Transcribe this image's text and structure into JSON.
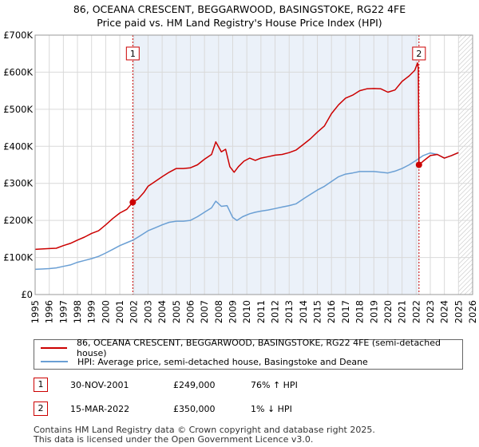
{
  "titles": {
    "line1": "86, OCEANA CRESCENT, BEGGARWOOD, BASINGSTOKE, RG22 4FE",
    "line2": "Price paid vs. HM Land Registry's House Price Index (HPI)"
  },
  "colors": {
    "property": "#cc0000",
    "hpi": "#6a9fd4",
    "band": "#dde8f5",
    "grid": "#d9d9d9"
  },
  "chart_data": {
    "type": "line",
    "xlim": [
      1995,
      2026
    ],
    "ylim": [
      0,
      700000
    ],
    "y_ticks": [
      {
        "value": 0,
        "label": "£0"
      },
      {
        "value": 100000,
        "label": "£100K"
      },
      {
        "value": 200000,
        "label": "£200K"
      },
      {
        "value": 300000,
        "label": "£300K"
      },
      {
        "value": 400000,
        "label": "£400K"
      },
      {
        "value": 500000,
        "label": "£500K"
      },
      {
        "value": 600000,
        "label": "£600K"
      },
      {
        "value": 700000,
        "label": "£700K"
      }
    ],
    "x_ticks": [
      "1995",
      "1996",
      "1997",
      "1998",
      "1999",
      "2000",
      "2001",
      "2002",
      "2003",
      "2004",
      "2005",
      "2006",
      "2007",
      "2008",
      "2009",
      "2010",
      "2011",
      "2012",
      "2013",
      "2014",
      "2015",
      "2016",
      "2017",
      "2018",
      "2019",
      "2020",
      "2021",
      "2022",
      "2023",
      "2024",
      "2025",
      "2026"
    ],
    "shaded_band": [
      2001.92,
      2022.2
    ],
    "projection_start": 2025.0,
    "series": [
      {
        "name": "86, OCEANA CRESCENT, BEGGARWOOD, BASINGSTOKE, RG22 4FE (semi-detached house)",
        "color": "#cc0000",
        "x": [
          1995.0,
          1995.5,
          1996.0,
          1996.5,
          1997.0,
          1997.5,
          1998.0,
          1998.5,
          1999.0,
          1999.5,
          2000.0,
          2000.5,
          2001.0,
          2001.5,
          2001.92,
          2002.3,
          2002.7,
          2003.0,
          2003.5,
          2004.0,
          2004.5,
          2005.0,
          2005.5,
          2006.0,
          2006.5,
          2007.0,
          2007.5,
          2007.8,
          2008.2,
          2008.5,
          2008.8,
          2009.1,
          2009.4,
          2009.8,
          2010.2,
          2010.6,
          2011.0,
          2011.5,
          2012.0,
          2012.5,
          2013.0,
          2013.5,
          2014.0,
          2014.5,
          2015.0,
          2015.5,
          2016.0,
          2016.5,
          2017.0,
          2017.5,
          2018.0,
          2018.5,
          2019.0,
          2019.5,
          2020.0,
          2020.5,
          2021.0,
          2021.5,
          2021.9,
          2022.1,
          2022.15,
          2022.2,
          2022.5,
          2023.0,
          2023.5,
          2024.0,
          2024.5,
          2025.0
        ],
        "y": [
          122000,
          123000,
          124000,
          125000,
          132000,
          138000,
          147000,
          155000,
          165000,
          172000,
          188000,
          205000,
          220000,
          230000,
          249000,
          258000,
          275000,
          292000,
          305000,
          318000,
          330000,
          340000,
          340000,
          342000,
          350000,
          365000,
          378000,
          412000,
          385000,
          392000,
          345000,
          330000,
          345000,
          360000,
          368000,
          362000,
          368000,
          372000,
          376000,
          378000,
          383000,
          390000,
          405000,
          420000,
          438000,
          455000,
          488000,
          512000,
          530000,
          538000,
          550000,
          555000,
          556000,
          555000,
          546000,
          552000,
          575000,
          590000,
          605000,
          625000,
          610000,
          350000,
          360000,
          375000,
          378000,
          368000,
          375000,
          383000
        ]
      },
      {
        "name": "HPI: Average price, semi-detached house, Basingstoke and Deane",
        "color": "#6a9fd4",
        "x": [
          1995.0,
          1995.5,
          1996.0,
          1996.5,
          1997.0,
          1997.5,
          1998.0,
          1998.5,
          1999.0,
          1999.5,
          2000.0,
          2000.5,
          2001.0,
          2001.5,
          2002.0,
          2002.5,
          2003.0,
          2003.5,
          2004.0,
          2004.5,
          2005.0,
          2005.5,
          2006.0,
          2006.5,
          2007.0,
          2007.5,
          2007.8,
          2008.2,
          2008.6,
          2009.0,
          2009.3,
          2009.7,
          2010.2,
          2010.6,
          2011.0,
          2011.5,
          2012.0,
          2012.5,
          2013.0,
          2013.5,
          2014.0,
          2014.5,
          2015.0,
          2015.5,
          2016.0,
          2016.5,
          2017.0,
          2017.5,
          2018.0,
          2018.5,
          2019.0,
          2019.5,
          2020.0,
          2020.5,
          2021.0,
          2021.5,
          2022.0,
          2022.5,
          2023.0,
          2023.5,
          2024.0,
          2024.5,
          2025.0
        ],
        "y": [
          68000,
          69000,
          70000,
          72000,
          76000,
          80000,
          87000,
          92000,
          97000,
          103000,
          112000,
          122000,
          132000,
          140000,
          148000,
          160000,
          172000,
          180000,
          188000,
          195000,
          198000,
          198000,
          200000,
          210000,
          222000,
          234000,
          252000,
          238000,
          240000,
          208000,
          200000,
          210000,
          218000,
          222000,
          225000,
          228000,
          232000,
          236000,
          240000,
          245000,
          258000,
          270000,
          282000,
          292000,
          305000,
          318000,
          325000,
          328000,
          332000,
          332000,
          332000,
          330000,
          328000,
          333000,
          340000,
          350000,
          362000,
          375000,
          382000,
          378000,
          368000,
          375000,
          383000
        ]
      }
    ],
    "markers": [
      {
        "label": "1",
        "x": 2001.92,
        "y": 249000
      },
      {
        "label": "2",
        "x": 2022.2,
        "y": 350000
      }
    ]
  },
  "legend": {
    "property_label": "86, OCEANA CRESCENT, BEGGARWOOD, BASINGSTOKE, RG22 4FE (semi-detached house)",
    "hpi_label": "HPI: Average price, semi-detached house, Basingstoke and Deane"
  },
  "transactions": [
    {
      "num": "1",
      "date": "30-NOV-2001",
      "price": "£249,000",
      "hpi": "76% ↑ HPI"
    },
    {
      "num": "2",
      "date": "15-MAR-2022",
      "price": "£350,000",
      "hpi": "1% ↓ HPI"
    }
  ],
  "footer": {
    "line1": "Contains HM Land Registry data © Crown copyright and database right 2025.",
    "line2": "This data is licensed under the Open Government Licence v3.0."
  }
}
